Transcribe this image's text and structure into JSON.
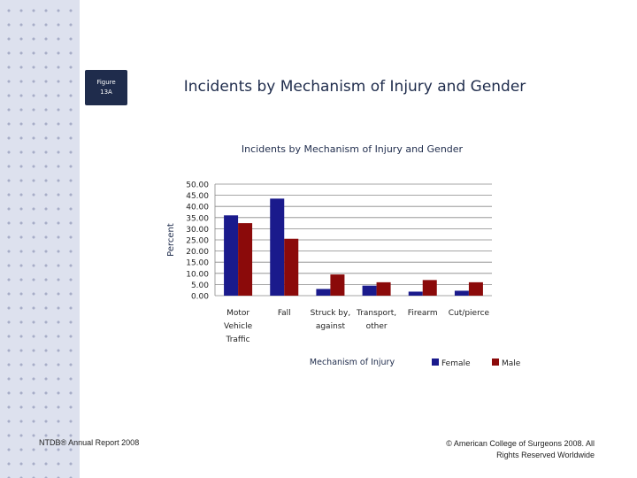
{
  "figure_badge": {
    "line1": "Figure",
    "line2": "13A"
  },
  "slide_title": "Incidents by Mechanism of Injury and Gender",
  "footer": {
    "left": "NTDB® Annual Report 2008",
    "right_line1": "© American College of Surgeons 2008.  All",
    "right_line2": "Rights Reserved Worldwide"
  },
  "colors": {
    "female": "#1a1a8c",
    "male": "#8b0a0a",
    "navy": "#1f2c4c"
  },
  "chart_data": {
    "type": "bar",
    "title": "Incidents by Mechanism of Injury and Gender",
    "xlabel": "Mechanism of Injury",
    "ylabel": "Percent",
    "ylim": [
      0,
      50
    ],
    "yticks": [
      "0.00",
      "5.00",
      "10.00",
      "15.00",
      "20.00",
      "25.00",
      "30.00",
      "35.00",
      "40.00",
      "45.00",
      "50.00"
    ],
    "categories": [
      [
        "Motor",
        "Vehicle",
        "Traffic"
      ],
      [
        "Fall"
      ],
      [
        "Struck by,",
        "against"
      ],
      [
        "Transport,",
        "other"
      ],
      [
        "Firearm"
      ],
      [
        "Cut/pierce"
      ]
    ],
    "series": [
      {
        "name": "Female",
        "values": [
          36,
          43.5,
          3,
          4.5,
          1.8,
          2.2
        ]
      },
      {
        "name": "Male",
        "values": [
          32.5,
          25.5,
          9.5,
          6,
          7,
          6
        ]
      }
    ],
    "legend": "bottom-right",
    "grid": true
  }
}
